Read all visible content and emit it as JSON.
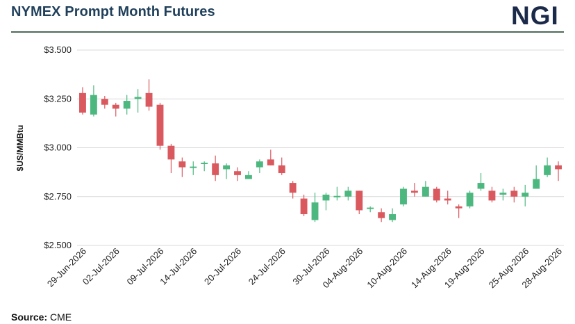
{
  "header": {
    "title": "NYMEX Prompt Month Futures",
    "logo_text": "NGI"
  },
  "footer": {
    "source_label": "Source:",
    "source_value": "CME"
  },
  "colors": {
    "up": "#4cb87f",
    "down": "#d9595f",
    "grid": "#d9d9d9",
    "rule": "#4d6b5a"
  },
  "chart_data": {
    "type": "candlestick",
    "title": "NYMEX Prompt Month Futures",
    "ylabel": "$US/MMBtu",
    "ylim": [
      2.5,
      3.5
    ],
    "y_ticks": [
      "$3.500",
      "$3.250",
      "$3.000",
      "$2.750",
      "$2.500"
    ],
    "x_tick_labels": [
      "29-Jun-2026",
      "02-Jul-2026",
      "09-Jul-2026",
      "14-Jul-2026",
      "20-Jul-2026",
      "24-Jul-2026",
      "30-Jul-2026",
      "04-Aug-2026",
      "10-Aug-2026",
      "14-Aug-2026",
      "19-Aug-2026",
      "25-Aug-2026",
      "28-Aug-2026"
    ],
    "grid": true,
    "candles": [
      {
        "date": "29-Jun-2026",
        "open": 3.28,
        "high": 3.31,
        "low": 3.17,
        "close": 3.18
      },
      {
        "date": "30-Jun-2026",
        "open": 3.17,
        "high": 3.32,
        "low": 3.16,
        "close": 3.27
      },
      {
        "date": "01-Jul-2026",
        "open": 3.25,
        "high": 3.265,
        "low": 3.2,
        "close": 3.22
      },
      {
        "date": "02-Jul-2026",
        "open": 3.22,
        "high": 3.23,
        "low": 3.16,
        "close": 3.2
      },
      {
        "date": "06-Jul-2026",
        "open": 3.2,
        "high": 3.27,
        "low": 3.17,
        "close": 3.24
      },
      {
        "date": "07-Jul-2026",
        "open": 3.25,
        "high": 3.3,
        "low": 3.18,
        "close": 3.26
      },
      {
        "date": "08-Jul-2026",
        "open": 3.28,
        "high": 3.35,
        "low": 3.19,
        "close": 3.21
      },
      {
        "date": "09-Jul-2026",
        "open": 3.22,
        "high": 3.23,
        "low": 2.99,
        "close": 3.01
      },
      {
        "date": "10-Jul-2026",
        "open": 3.01,
        "high": 3.02,
        "low": 2.87,
        "close": 2.94
      },
      {
        "date": "13-Jul-2026",
        "open": 2.93,
        "high": 2.95,
        "low": 2.85,
        "close": 2.9
      },
      {
        "date": "14-Jul-2026",
        "open": 2.9,
        "high": 2.93,
        "low": 2.86,
        "close": 2.9
      },
      {
        "date": "15-Jul-2026",
        "open": 2.92,
        "high": 2.93,
        "low": 2.88,
        "close": 2.92
      },
      {
        "date": "16-Jul-2026",
        "open": 2.92,
        "high": 2.96,
        "low": 2.83,
        "close": 2.86
      },
      {
        "date": "17-Jul-2026",
        "open": 2.89,
        "high": 2.92,
        "low": 2.84,
        "close": 2.91
      },
      {
        "date": "20-Jul-2026",
        "open": 2.88,
        "high": 2.9,
        "low": 2.83,
        "close": 2.86
      },
      {
        "date": "21-Jul-2026",
        "open": 2.84,
        "high": 2.88,
        "low": 2.84,
        "close": 2.86
      },
      {
        "date": "22-Jul-2026",
        "open": 2.9,
        "high": 2.94,
        "low": 2.87,
        "close": 2.93
      },
      {
        "date": "23-Jul-2026",
        "open": 2.94,
        "high": 2.99,
        "low": 2.91,
        "close": 2.91
      },
      {
        "date": "24-Jul-2026",
        "open": 2.91,
        "high": 2.95,
        "low": 2.86,
        "close": 2.87
      },
      {
        "date": "27-Jul-2026",
        "open": 2.82,
        "high": 2.83,
        "low": 2.74,
        "close": 2.77
      },
      {
        "date": "28-Jul-2026",
        "open": 2.74,
        "high": 2.76,
        "low": 2.65,
        "close": 2.66
      },
      {
        "date": "29-Jul-2026",
        "open": 2.63,
        "high": 2.77,
        "low": 2.62,
        "close": 2.72
      },
      {
        "date": "30-Jul-2026",
        "open": 2.73,
        "high": 2.77,
        "low": 2.68,
        "close": 2.76
      },
      {
        "date": "31-Jul-2026",
        "open": 2.75,
        "high": 2.8,
        "low": 2.73,
        "close": 2.75
      },
      {
        "date": "03-Aug-2026",
        "open": 2.75,
        "high": 2.8,
        "low": 2.73,
        "close": 2.78
      },
      {
        "date": "04-Aug-2026",
        "open": 2.78,
        "high": 2.78,
        "low": 2.66,
        "close": 2.68
      },
      {
        "date": "05-Aug-2026",
        "open": 2.69,
        "high": 2.7,
        "low": 2.67,
        "close": 2.69
      },
      {
        "date": "06-Aug-2026",
        "open": 2.67,
        "high": 2.69,
        "low": 2.62,
        "close": 2.64
      },
      {
        "date": "07-Aug-2026",
        "open": 2.63,
        "high": 2.69,
        "low": 2.62,
        "close": 2.66
      },
      {
        "date": "10-Aug-2026",
        "open": 2.71,
        "high": 2.8,
        "low": 2.7,
        "close": 2.79
      },
      {
        "date": "11-Aug-2026",
        "open": 2.78,
        "high": 2.82,
        "low": 2.75,
        "close": 2.77
      },
      {
        "date": "12-Aug-2026",
        "open": 2.75,
        "high": 2.83,
        "low": 2.75,
        "close": 2.8
      },
      {
        "date": "13-Aug-2026",
        "open": 2.79,
        "high": 2.8,
        "low": 2.72,
        "close": 2.73
      },
      {
        "date": "14-Aug-2026",
        "open": 2.74,
        "high": 2.78,
        "low": 2.71,
        "close": 2.73
      },
      {
        "date": "17-Aug-2026",
        "open": 2.7,
        "high": 2.71,
        "low": 2.64,
        "close": 2.69
      },
      {
        "date": "18-Aug-2026",
        "open": 2.7,
        "high": 2.78,
        "low": 2.69,
        "close": 2.77
      },
      {
        "date": "19-Aug-2026",
        "open": 2.79,
        "high": 2.87,
        "low": 2.78,
        "close": 2.82
      },
      {
        "date": "20-Aug-2026",
        "open": 2.78,
        "high": 2.8,
        "low": 2.72,
        "close": 2.73
      },
      {
        "date": "21-Aug-2026",
        "open": 2.76,
        "high": 2.79,
        "low": 2.73,
        "close": 2.77
      },
      {
        "date": "24-Aug-2026",
        "open": 2.78,
        "high": 2.8,
        "low": 2.72,
        "close": 2.75
      },
      {
        "date": "25-Aug-2026",
        "open": 2.75,
        "high": 2.81,
        "low": 2.7,
        "close": 2.77
      },
      {
        "date": "26-Aug-2026",
        "open": 2.79,
        "high": 2.91,
        "low": 2.79,
        "close": 2.84
      },
      {
        "date": "27-Aug-2026",
        "open": 2.86,
        "high": 2.95,
        "low": 2.85,
        "close": 2.91
      },
      {
        "date": "28-Aug-2026",
        "open": 2.91,
        "high": 2.93,
        "low": 2.83,
        "close": 2.89
      }
    ]
  }
}
